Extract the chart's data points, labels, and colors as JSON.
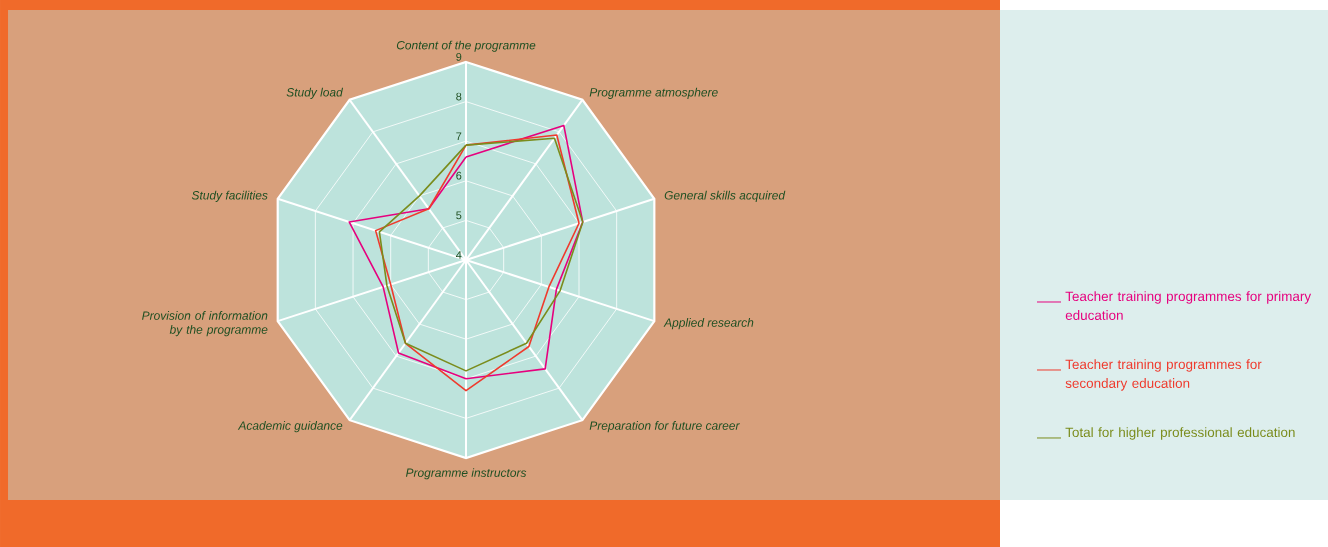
{
  "chart_data": {
    "type": "radar",
    "categories": [
      "Content of the programme",
      "Programme atmosphere",
      "General skills acquired",
      "Applied research",
      "Preparation for future career",
      "Programme instructors",
      "Academic guidance",
      "Provision of information by the programme",
      "Study facilities",
      "Study load"
    ],
    "ylim": [
      4,
      9
    ],
    "yticks": [
      4,
      5,
      6,
      7,
      8,
      9
    ],
    "grid": true,
    "legend": "right",
    "series": [
      {
        "name": "Teacher training programmes for primary education",
        "color": "#e6007e",
        "values": [
          6.6,
          8.2,
          7.1,
          6.4,
          7.4,
          7.0,
          6.9,
          6.2,
          7.1,
          5.6
        ]
      },
      {
        "name": "Teacher training programmes for secondary education",
        "color": "#ef3a2d",
        "values": [
          6.9,
          7.9,
          7.0,
          6.2,
          6.7,
          7.3,
          6.6,
          6.0,
          6.4,
          5.6
        ]
      },
      {
        "name": "Total for higher professional education",
        "color": "#7a8c1c",
        "values": [
          6.9,
          7.8,
          7.1,
          6.5,
          6.6,
          6.8,
          6.6,
          6.1,
          6.3,
          6.0
        ]
      }
    ]
  }
}
